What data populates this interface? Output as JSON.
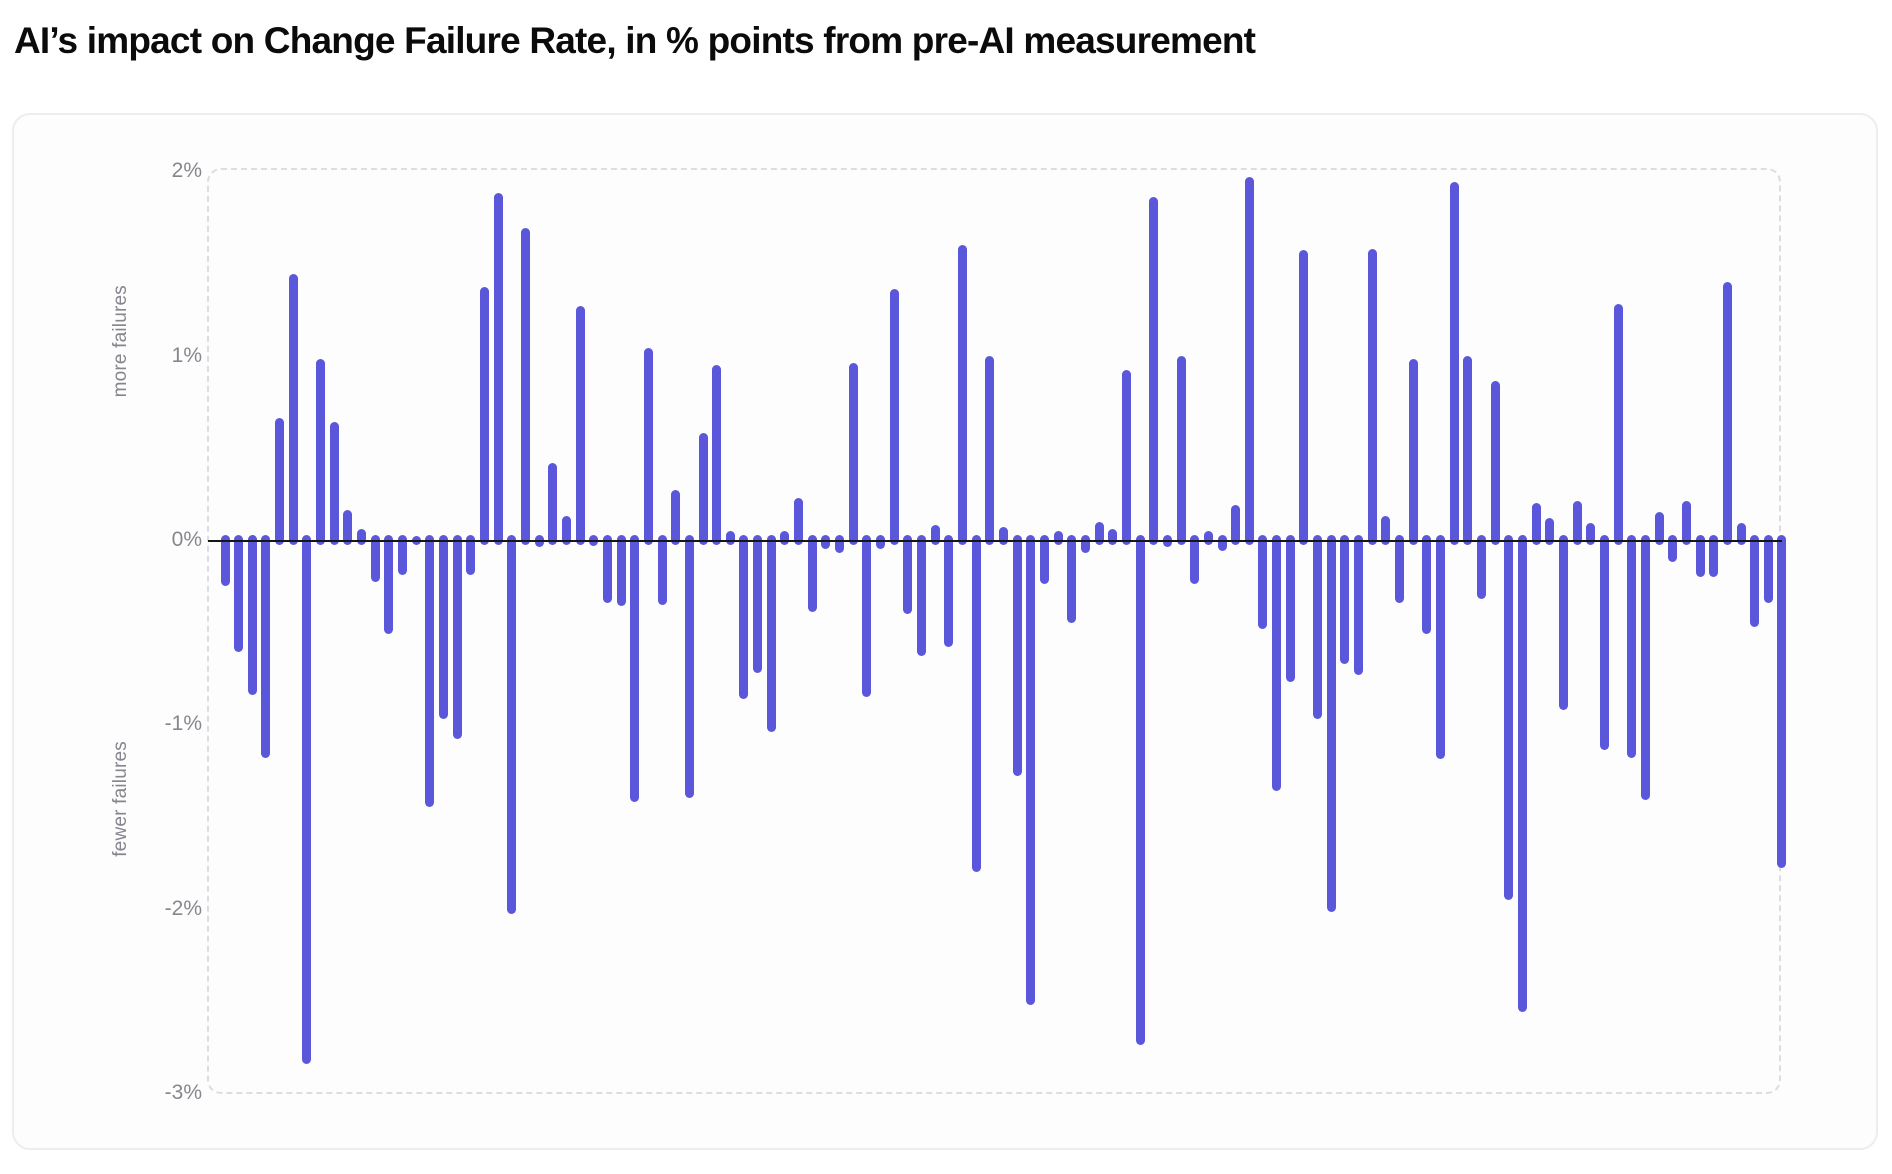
{
  "page": {
    "title": "AI’s impact on Change Failure Rate, in % points from pre-AI measurement"
  },
  "axis": {
    "upper_region_label": "more failures",
    "lower_region_label": "fewer failures",
    "tick_labels": [
      "2%",
      "1%",
      "0%",
      "-1%",
      "-2%",
      "-3%"
    ]
  },
  "colors": {
    "bar": "#5a57db",
    "zero_line": "#161616",
    "card_border": "#ededf1",
    "plot_dashed_border": "#dcdce3",
    "tick_text": "#86868e",
    "title_text": "#0b0b0c",
    "card_background": "#fdfdfe",
    "page_background": "#ffffff"
  },
  "chart_data": {
    "type": "bar",
    "title": "AI’s impact on Change Failure Rate, in % points from pre-AI measurement",
    "xlabel": "",
    "ylabel": "% points from pre-AI measurement",
    "y_region_positive": "more failures",
    "y_region_negative": "fewer failures",
    "ylim": [
      -3,
      2
    ],
    "yticks": [
      2,
      1,
      0,
      -1,
      -2,
      -3
    ],
    "ytick_labels": [
      "2%",
      "1%",
      "0%",
      "-1%",
      "-2%",
      "-3%"
    ],
    "grid": false,
    "legend": false,
    "x_axis_labels": "none",
    "bar_color": "#5a57db",
    "values": [
      -0.25,
      -0.61,
      -0.84,
      -1.18,
      0.66,
      1.44,
      -2.84,
      0.98,
      0.64,
      0.16,
      0.06,
      -0.23,
      -0.51,
      -0.19,
      0.02,
      -1.45,
      -0.97,
      -1.08,
      -0.19,
      1.37,
      1.88,
      -2.03,
      1.69,
      -0.04,
      0.42,
      0.13,
      1.27,
      -0.03,
      -0.34,
      -0.36,
      -1.42,
      1.04,
      -0.35,
      0.27,
      -1.4,
      0.58,
      0.95,
      0.05,
      -0.86,
      -0.72,
      -1.04,
      0.05,
      0.23,
      -0.39,
      -0.05,
      -0.07,
      0.96,
      -0.85,
      -0.05,
      1.36,
      -0.4,
      -0.63,
      0.08,
      -0.58,
      1.6,
      -1.8,
      1.0,
      0.07,
      -1.28,
      -2.52,
      -0.24,
      0.05,
      -0.45,
      -0.07,
      0.1,
      0.06,
      0.92,
      -2.74,
      1.86,
      -0.04,
      1.0,
      -0.24,
      0.05,
      -0.06,
      0.19,
      1.97,
      -0.48,
      -1.36,
      -0.77,
      1.57,
      -0.97,
      -2.02,
      -0.67,
      -0.73,
      1.58,
      0.13,
      -0.34,
      0.98,
      -0.51,
      -1.19,
      1.94,
      1.0,
      -0.32,
      0.86,
      -1.95,
      -2.56,
      0.2,
      0.12,
      -0.92,
      0.21,
      0.09,
      -1.14,
      1.28,
      -1.18,
      -1.41,
      0.15,
      -0.12,
      0.21,
      -0.2,
      -0.2,
      1.4,
      0.09,
      -0.47,
      -0.34,
      -1.78
    ]
  }
}
